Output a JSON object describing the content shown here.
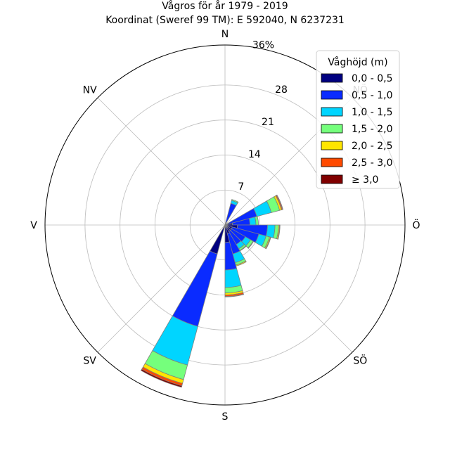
{
  "chart_data": {
    "type": "polar_stacked_bar",
    "title": "Vågros för år 1979 - 2019",
    "subtitle": "Koordinat (Sweref 99 TM): E 592040, N 6237231",
    "r_max": 36,
    "r_ticks": [
      7,
      14,
      21,
      28
    ],
    "r_tick_labels": [
      "7",
      "14",
      "21",
      "28"
    ],
    "r_max_label": "36%",
    "grid": true,
    "directions": [
      {
        "label": "N",
        "angle_deg": 0
      },
      {
        "label": "NV",
        "angle_deg": 315
      },
      {
        "label": "V",
        "angle_deg": 270
      },
      {
        "label": "SV",
        "angle_deg": 225
      },
      {
        "label": "S",
        "angle_deg": 180
      },
      {
        "label": "SÖ",
        "angle_deg": 135
      },
      {
        "label": "Ö",
        "angle_deg": 90
      },
      {
        "label": "NÖ",
        "angle_deg": 45
      }
    ],
    "legend": {
      "title": "Våghöjd (m)",
      "placement": "top-right",
      "entries": [
        "0,0 - 0,5",
        "0,5 - 1,0",
        "1,0 - 1,5",
        "1,5 - 2,0",
        "2,0 - 2,5",
        "2,5 - 3,0",
        "≥ 3,0"
      ]
    },
    "colors": [
      "#000080",
      "#0a2bff",
      "#00d5ff",
      "#75ff7c",
      "#ffe500",
      "#ff4a00",
      "#800000"
    ],
    "sector_width_deg": 15,
    "sectors": [
      {
        "dir_deg": 22.5,
        "values": [
          0.5,
          4.0,
          0.6,
          0.2,
          0.0,
          0.0,
          0.0
        ]
      },
      {
        "dir_deg": 30,
        "values": [
          0.0,
          0.0,
          0.0,
          0.0,
          0.0,
          0.0,
          0.0
        ]
      },
      {
        "dir_deg": 67.5,
        "values": [
          0.8,
          5.8,
          3.0,
          1.7,
          0.4,
          0.2,
          0.1
        ]
      },
      {
        "dir_deg": 82.5,
        "values": [
          1.5,
          3.5,
          1.2,
          0.5,
          0.0,
          0.0,
          0.0
        ]
      },
      {
        "dir_deg": 97.5,
        "values": [
          2.5,
          6.0,
          1.5,
          0.7,
          0.2,
          0.1,
          0.0
        ]
      },
      {
        "dir_deg": 112.5,
        "values": [
          1.5,
          5.5,
          1.5,
          0.7,
          0.2,
          0.1,
          0.0
        ]
      },
      {
        "dir_deg": 127.5,
        "values": [
          1.5,
          3.2,
          1.2,
          0.6,
          0.1,
          0.0,
          0.0
        ]
      },
      {
        "dir_deg": 142.5,
        "values": [
          1.5,
          3.0,
          1.0,
          0.4,
          0.1,
          0.0,
          0.0
        ]
      },
      {
        "dir_deg": 157.5,
        "values": [
          1.8,
          4.2,
          1.8,
          0.5,
          0.2,
          0.0,
          0.0
        ]
      },
      {
        "dir_deg": 172.5,
        "values": [
          3.5,
          5.5,
          3.5,
          1.1,
          0.4,
          0.3,
          0.1
        ]
      },
      {
        "dir_deg": 202.5,
        "values": [
          6.0,
          15.0,
          8.0,
          3.0,
          0.8,
          0.5,
          0.3
        ]
      }
    ]
  }
}
